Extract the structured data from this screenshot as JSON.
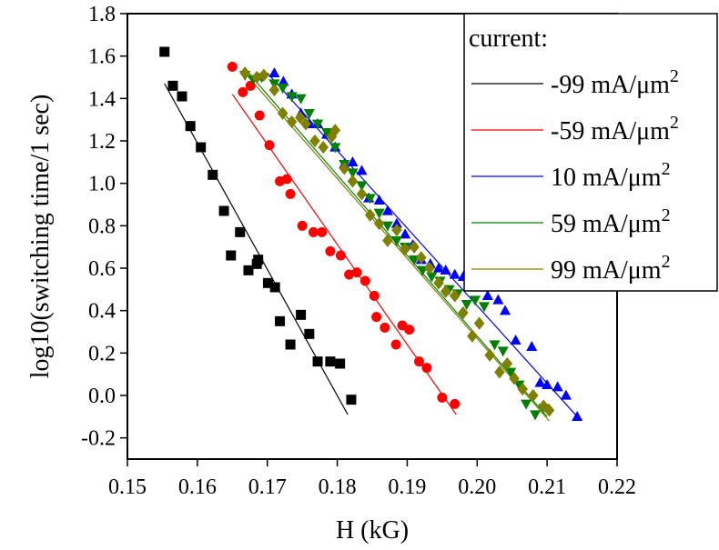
{
  "chart_data": {
    "type": "scatter",
    "xlabel": "H (kG)",
    "ylabel": "log10(switching time/1 sec)",
    "xlim": [
      0.15,
      0.22
    ],
    "ylim": [
      -0.3,
      1.8
    ],
    "xticks": [
      0.15,
      0.16,
      0.17,
      0.18,
      0.19,
      0.2,
      0.21,
      0.22
    ],
    "xtick_labels": [
      "0.15",
      "0.16",
      "0.17",
      "0.18",
      "0.19",
      "0.20",
      "0.21",
      "0.22"
    ],
    "yticks": [
      -0.2,
      0.0,
      0.2,
      0.4,
      0.6,
      0.8,
      1.0,
      1.2,
      1.4,
      1.6,
      1.8
    ],
    "ytick_labels": [
      "-0.2",
      "0.0",
      "0.2",
      "0.4",
      "0.6",
      "0.8",
      "1.0",
      "1.2",
      "1.4",
      "1.6",
      "1.8"
    ],
    "legend": {
      "title": "current:",
      "placement": "top-right"
    },
    "series": [
      {
        "name": "-99 mA/μm",
        "name_sup": "2",
        "color": "#000000",
        "marker": "square",
        "points": [
          [
            0.1553,
            1.62
          ],
          [
            0.1565,
            1.46
          ],
          [
            0.1578,
            1.41
          ],
          [
            0.159,
            1.27
          ],
          [
            0.1605,
            1.17
          ],
          [
            0.1622,
            1.04
          ],
          [
            0.1638,
            0.87
          ],
          [
            0.1648,
            0.66
          ],
          [
            0.1661,
            0.77
          ],
          [
            0.1673,
            0.59
          ],
          [
            0.1685,
            0.62
          ],
          [
            0.1687,
            0.64
          ],
          [
            0.1701,
            0.53
          ],
          [
            0.1711,
            0.51
          ],
          [
            0.1718,
            0.35
          ],
          [
            0.1733,
            0.24
          ],
          [
            0.1748,
            0.38
          ],
          [
            0.176,
            0.29
          ],
          [
            0.1772,
            0.16
          ],
          [
            0.179,
            0.16
          ],
          [
            0.1804,
            0.15
          ],
          [
            0.182,
            -0.02
          ]
        ],
        "fit": [
          [
            0.1553,
            1.47
          ],
          [
            0.1815,
            -0.09
          ]
        ]
      },
      {
        "name": "-59 mA/μm",
        "name_sup": "2",
        "color": "#ff0000",
        "marker": "circle",
        "points": [
          [
            0.165,
            1.55
          ],
          [
            0.1665,
            1.43
          ],
          [
            0.1676,
            1.46
          ],
          [
            0.1689,
            1.32
          ],
          [
            0.1703,
            1.18
          ],
          [
            0.1718,
            1.01
          ],
          [
            0.1728,
            1.02
          ],
          [
            0.1733,
            0.95
          ],
          [
            0.175,
            0.8
          ],
          [
            0.1766,
            0.77
          ],
          [
            0.1778,
            0.77
          ],
          [
            0.179,
            0.68
          ],
          [
            0.1805,
            0.66
          ],
          [
            0.1817,
            0.57
          ],
          [
            0.1828,
            0.58
          ],
          [
            0.184,
            0.54
          ],
          [
            0.1853,
            0.47
          ],
          [
            0.1856,
            0.37
          ],
          [
            0.1868,
            0.32
          ],
          [
            0.1884,
            0.24
          ],
          [
            0.1893,
            0.33
          ],
          [
            0.1903,
            0.31
          ],
          [
            0.1917,
            0.16
          ],
          [
            0.1928,
            0.13
          ],
          [
            0.195,
            -0.01
          ],
          [
            0.1968,
            -0.04
          ]
        ],
        "fit": [
          [
            0.165,
            1.42
          ],
          [
            0.197,
            -0.09
          ]
        ]
      },
      {
        "name": "10 mA/μm",
        "name_sup": "2",
        "color": "#0000ff",
        "marker": "triangle-up",
        "points": [
          [
            0.171,
            1.52
          ],
          [
            0.1723,
            1.48
          ],
          [
            0.1735,
            1.42
          ],
          [
            0.1748,
            1.33
          ],
          [
            0.176,
            1.28
          ],
          [
            0.1772,
            1.28
          ],
          [
            0.1785,
            1.23
          ],
          [
            0.1797,
            1.17
          ],
          [
            0.181,
            1.09
          ],
          [
            0.1822,
            1.1
          ],
          [
            0.1835,
            1.06
          ],
          [
            0.1845,
            0.93
          ],
          [
            0.186,
            0.92
          ],
          [
            0.1872,
            0.87
          ],
          [
            0.1885,
            0.81
          ],
          [
            0.1897,
            0.76
          ],
          [
            0.1908,
            0.71
          ],
          [
            0.192,
            0.64
          ],
          [
            0.1933,
            0.62
          ],
          [
            0.1945,
            0.6
          ],
          [
            0.1955,
            0.59
          ],
          [
            0.1968,
            0.57
          ],
          [
            0.198,
            0.56
          ],
          [
            0.1993,
            0.55
          ],
          [
            0.2005,
            0.51
          ],
          [
            0.2015,
            0.47
          ],
          [
            0.203,
            0.45
          ],
          [
            0.204,
            0.4
          ],
          [
            0.2055,
            0.26
          ],
          [
            0.2078,
            0.23
          ],
          [
            0.209,
            0.06
          ],
          [
            0.21,
            0.05
          ],
          [
            0.2115,
            0.04
          ],
          [
            0.2127,
            0.0
          ],
          [
            0.2143,
            -0.1
          ]
        ],
        "fit": [
          [
            0.17,
            1.52
          ],
          [
            0.2143,
            -0.1
          ]
        ]
      },
      {
        "name": "59 mA/μm",
        "name_sup": "2",
        "color": "#008000",
        "marker": "triangle-down",
        "points": [
          [
            0.1668,
            1.51
          ],
          [
            0.168,
            1.49
          ],
          [
            0.1692,
            1.5
          ],
          [
            0.171,
            1.47
          ],
          [
            0.1722,
            1.45
          ],
          [
            0.1735,
            1.41
          ],
          [
            0.1748,
            1.4
          ],
          [
            0.176,
            1.33
          ],
          [
            0.1772,
            1.28
          ],
          [
            0.1785,
            1.24
          ],
          [
            0.1797,
            1.17
          ],
          [
            0.181,
            1.09
          ],
          [
            0.1822,
            1.05
          ],
          [
            0.1835,
            0.99
          ],
          [
            0.1847,
            0.93
          ],
          [
            0.186,
            0.86
          ],
          [
            0.1872,
            0.8
          ],
          [
            0.1885,
            0.73
          ],
          [
            0.1897,
            0.7
          ],
          [
            0.191,
            0.64
          ],
          [
            0.1922,
            0.59
          ],
          [
            0.1935,
            0.56
          ],
          [
            0.1947,
            0.54
          ],
          [
            0.196,
            0.5
          ],
          [
            0.1972,
            0.48
          ],
          [
            0.1985,
            0.43
          ],
          [
            0.1997,
            0.45
          ],
          [
            0.201,
            0.42
          ],
          [
            0.2025,
            0.24
          ],
          [
            0.2037,
            0.21
          ],
          [
            0.2048,
            0.11
          ],
          [
            0.206,
            0.05
          ],
          [
            0.207,
            -0.04
          ],
          [
            0.2083,
            -0.09
          ],
          [
            0.2095,
            -0.06
          ]
        ],
        "fit": [
          [
            0.1668,
            1.54
          ],
          [
            0.21,
            -0.1
          ]
        ]
      },
      {
        "name": "99 mA/μm",
        "name_sup": "2",
        "color": "#808000",
        "marker": "diamond",
        "points": [
          [
            0.1668,
            1.52
          ],
          [
            0.1685,
            1.5
          ],
          [
            0.1695,
            1.51
          ],
          [
            0.171,
            1.44
          ],
          [
            0.1722,
            1.33
          ],
          [
            0.1735,
            1.29
          ],
          [
            0.1747,
            1.31
          ],
          [
            0.1755,
            1.28
          ],
          [
            0.1768,
            1.2
          ],
          [
            0.178,
            1.17
          ],
          [
            0.1792,
            1.22
          ],
          [
            0.1797,
            1.25
          ],
          [
            0.181,
            1.07
          ],
          [
            0.1822,
            1.01
          ],
          [
            0.1835,
            0.95
          ],
          [
            0.1847,
            0.85
          ],
          [
            0.186,
            0.81
          ],
          [
            0.1872,
            0.73
          ],
          [
            0.1885,
            0.78
          ],
          [
            0.1897,
            0.69
          ],
          [
            0.191,
            0.7
          ],
          [
            0.192,
            0.65
          ],
          [
            0.1932,
            0.6
          ],
          [
            0.1945,
            0.53
          ],
          [
            0.1955,
            0.49
          ],
          [
            0.1968,
            0.47
          ],
          [
            0.198,
            0.39
          ],
          [
            0.1993,
            0.28
          ],
          [
            0.2003,
            0.34
          ],
          [
            0.2018,
            0.19
          ],
          [
            0.2032,
            0.11
          ],
          [
            0.2043,
            0.15
          ],
          [
            0.2053,
            0.08
          ],
          [
            0.2065,
            0.03
          ],
          [
            0.208,
            0.0
          ],
          [
            0.2095,
            -0.05
          ],
          [
            0.2103,
            -0.07
          ]
        ],
        "fit": [
          [
            0.1668,
            1.52
          ],
          [
            0.2103,
            -0.12
          ]
        ]
      }
    ]
  }
}
